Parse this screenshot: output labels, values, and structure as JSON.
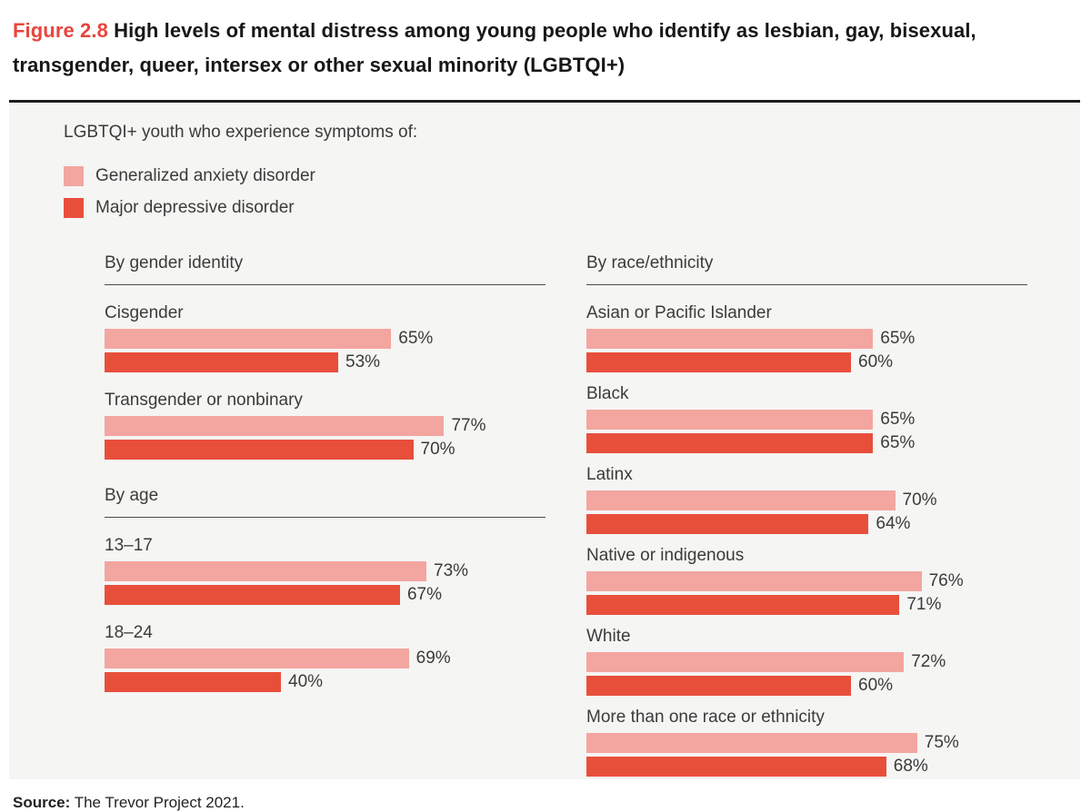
{
  "header": {
    "figure_label": "Figure 2.8",
    "title": "High levels of mental distress among young people who identify as lesbian, gay, bisexual, transgender, queer, intersex or other sexual minority (LGBTQI+)"
  },
  "panel": {
    "intro": "LGBTQI+ youth who experience symptoms of:"
  },
  "legend": {
    "items": [
      {
        "label": "Generalized anxiety disorder",
        "series": "anxiety"
      },
      {
        "label": "Major depressive disorder",
        "series": "depression"
      }
    ]
  },
  "colors": {
    "anxiety": "#F3A5A0",
    "depression": "#E84F3B",
    "figure_label": "#E8453C"
  },
  "chart_data": {
    "type": "bar",
    "orientation": "horizontal",
    "value_unit": "%",
    "xlim": [
      0,
      100
    ],
    "series": [
      {
        "key": "anxiety",
        "name": "Generalized anxiety disorder"
      },
      {
        "key": "depression",
        "name": "Major depressive disorder"
      }
    ],
    "columns": [
      {
        "side": "left",
        "sections": [
          {
            "heading": "By gender identity",
            "rows": [
              {
                "label": "Cisgender",
                "values": {
                  "anxiety": 65,
                  "depression": 53
                }
              },
              {
                "label": "Transgender or nonbinary",
                "values": {
                  "anxiety": 77,
                  "depression": 70
                }
              }
            ]
          },
          {
            "heading": "By age",
            "rows": [
              {
                "label": "13–17",
                "values": {
                  "anxiety": 73,
                  "depression": 67
                }
              },
              {
                "label": "18–24",
                "values": {
                  "anxiety": 69,
                  "depression": 40
                }
              }
            ]
          }
        ]
      },
      {
        "side": "right",
        "sections": [
          {
            "heading": "By race/ethnicity",
            "rows": [
              {
                "label": "Asian or Pacific Islander",
                "values": {
                  "anxiety": 65,
                  "depression": 60
                }
              },
              {
                "label": "Black",
                "values": {
                  "anxiety": 65,
                  "depression": 65
                }
              },
              {
                "label": "Latinx",
                "values": {
                  "anxiety": 70,
                  "depression": 64
                }
              },
              {
                "label": "Native or indigenous",
                "values": {
                  "anxiety": 76,
                  "depression": 71
                }
              },
              {
                "label": "White",
                "values": {
                  "anxiety": 72,
                  "depression": 60
                }
              },
              {
                "label": "More than one race or ethnicity",
                "values": {
                  "anxiety": 75,
                  "depression": 68
                }
              }
            ]
          }
        ]
      }
    ]
  },
  "source": {
    "prefix": "Source:",
    "text": "The Trevor Project 2021."
  }
}
